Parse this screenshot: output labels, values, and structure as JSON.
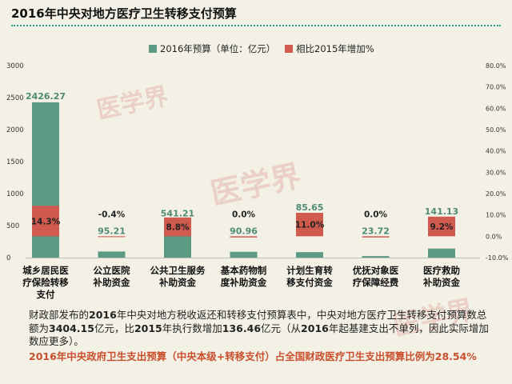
{
  "title": "2016年中央对地方医疗卫生转移支付预算",
  "chart_data": {
    "type": "bar",
    "categories": [
      [
        "城乡居民医",
        "疗保险转移",
        "支付"
      ],
      [
        "公立医院",
        "补助资金"
      ],
      [
        "公共卫生服务",
        "补助资金"
      ],
      [
        "基本药物制",
        "度补助资金"
      ],
      [
        "计划生育转",
        "移支付资金"
      ],
      [
        "优抚对象医",
        "疗保障经费"
      ],
      [
        "医疗救助",
        "补助资金"
      ]
    ],
    "series": [
      {
        "name": "2016年预算（单位：亿元）",
        "values": [
          2426.27,
          95.21,
          541.21,
          90.96,
          85.65,
          23.72,
          141.13
        ],
        "labels": [
          "2426.27",
          "95.21",
          "541.21",
          "90.96",
          "85.65",
          "23.72",
          "141.13"
        ],
        "color": "#5d9a83"
      },
      {
        "name": "相比2015年增加%",
        "values": [
          14.3,
          -0.4,
          8.8,
          0.0,
          11.0,
          0.0,
          9.2
        ],
        "labels": [
          "14.3%",
          "-0.4%",
          "8.8%",
          "0.0%",
          "11.0%",
          "0.0%",
          "9.2%"
        ],
        "color": "#cf5a4d"
      }
    ],
    "ylim_left": [
      0,
      3000
    ],
    "yticks_left": [
      "0",
      "500",
      "1000",
      "1500",
      "2000",
      "2500",
      "3000"
    ],
    "ylim_right": [
      -10,
      80
    ],
    "yticks_right": [
      "-10.0%",
      "0.0%",
      "10.0%",
      "20.0%",
      "30.0%",
      "40.0%",
      "50.0%",
      "60.0%",
      "70.0%",
      "80.0%"
    ],
    "legend_position": "top"
  },
  "paragraph": {
    "p1": "财政部发布的",
    "b1": "2016",
    "p2": "年中央对地方税收返还和转移支付预算表中，中央对地方医疗卫生转移支付预算数总额为",
    "b2": "3404.15",
    "p3": "亿元，比",
    "b3": "2015",
    "p4": "年执行数增加",
    "b4": "136.46",
    "p5": "亿元（从",
    "b5": "2016",
    "p6": "年起基建支出不单列，因此实际增加数应更多）。"
  },
  "highlight": "2016年中央政府卫生支出预算（中央本级+转移支付）占全国财政医疗卫生支出预算比例为28.54%",
  "watermark": "医学界"
}
